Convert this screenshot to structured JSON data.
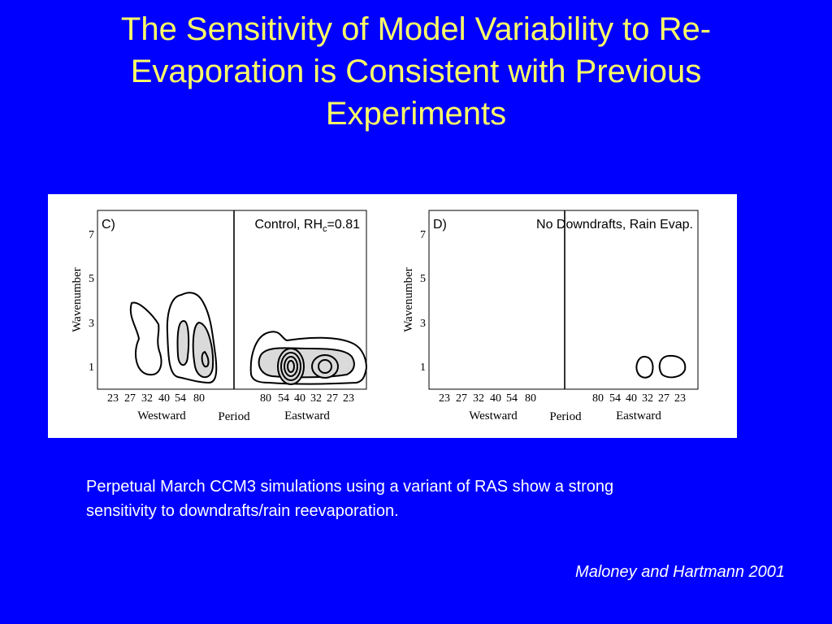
{
  "slide": {
    "title_lines": [
      "The Sensitivity of Model Variability to Re-",
      "Evaporation is Consistent with Previous",
      "Experiments"
    ],
    "caption_lines": [
      "Perpetual March CCM3 simulations using a variant of RAS show a strong",
      "sensitivity to downdrafts/rain reevaporation."
    ],
    "citation": "Maloney and Hartmann 2001",
    "colors": {
      "background": "#0000FF",
      "title": "#FFFF66",
      "body_text": "#FFFFFF",
      "contour_fill": "#DADADA"
    }
  },
  "chart_data": [
    {
      "type": "contour",
      "panel_label": "C)",
      "title_prefix": "Control, RH",
      "title_subscript": "c",
      "title_suffix": "=0.81",
      "ylabel": "Wavenumber",
      "xlabel_left": "Westward",
      "xlabel_center": "Period",
      "xlabel_right": "Eastward",
      "y_ticks": [
        "7",
        "5",
        "3",
        "1"
      ],
      "x_ticks_westward": [
        "23",
        "27",
        "32",
        "40",
        "54",
        "80"
      ],
      "x_ticks_eastward": [
        "80",
        "54",
        "40",
        "32",
        "27",
        "23"
      ],
      "ylim": [
        0,
        7.5
      ],
      "contours": [
        {
          "side": "westward",
          "period_days": [
            32,
            23
          ],
          "wavenumber": [
            0.8,
            3.7
          ],
          "level": 1,
          "filled": false
        },
        {
          "side": "westward",
          "period_days": [
            80,
            40
          ],
          "wavenumber": [
            0.8,
            4.4
          ],
          "level": 1,
          "filled": false
        },
        {
          "side": "westward",
          "period_days": [
            80,
            54
          ],
          "wavenumber": [
            0.8,
            3.0
          ],
          "level": 2,
          "filled": true
        },
        {
          "side": "eastward",
          "period_days": [
            80,
            23
          ],
          "wavenumber": [
            0.6,
            2.6
          ],
          "level": 1,
          "filled": false
        },
        {
          "side": "eastward",
          "period_days": [
            80,
            27
          ],
          "wavenumber": [
            0.8,
            2.0
          ],
          "level": 2,
          "filled": true
        },
        {
          "side": "eastward",
          "period_days": [
            54,
            40
          ],
          "wavenumber": [
            0.6,
            1.8
          ],
          "level": 4,
          "filled": true
        },
        {
          "side": "eastward",
          "period_days": [
            32,
            27
          ],
          "wavenumber": [
            0.9,
            1.5
          ],
          "level": 3,
          "filled": true
        }
      ]
    },
    {
      "type": "contour",
      "panel_label": "D)",
      "title_prefix": "No Downdrafts, Rain Evap.",
      "title_subscript": "",
      "title_suffix": "",
      "ylabel": "Wavenumber",
      "xlabel_left": "Westward",
      "xlabel_center": "Period",
      "xlabel_right": "Eastward",
      "y_ticks": [
        "7",
        "5",
        "3",
        "1"
      ],
      "x_ticks_westward": [
        "23",
        "27",
        "32",
        "40",
        "54",
        "80"
      ],
      "x_ticks_eastward": [
        "80",
        "54",
        "40",
        "32",
        "27",
        "23"
      ],
      "ylim": [
        0,
        7.5
      ],
      "contours": [
        {
          "side": "eastward",
          "period_days": [
            40,
            32
          ],
          "wavenumber": [
            0.5,
            1.5
          ],
          "level": 1,
          "filled": false
        },
        {
          "side": "eastward",
          "period_days": [
            32,
            23
          ],
          "wavenumber": [
            0.5,
            1.5
          ],
          "level": 1,
          "filled": false
        }
      ]
    }
  ]
}
